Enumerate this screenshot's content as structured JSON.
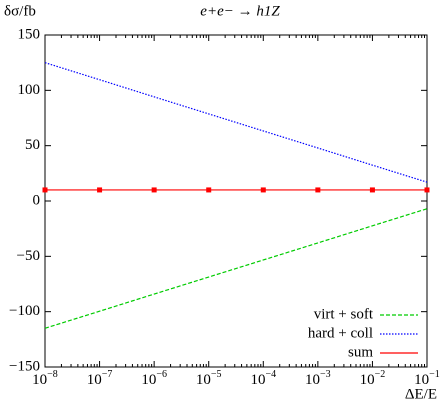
{
  "chart_data": {
    "type": "line",
    "title": "e+e− → h1Z",
    "ylabel": "δσ/fb",
    "xlabel": "ΔE/E",
    "x": [
      1e-08,
      1e-07,
      1e-06,
      1e-05,
      0.0001,
      0.001,
      0.01,
      0.1
    ],
    "series": [
      {
        "name": "virt + soft",
        "color": "#00cc00",
        "dash": "dashed",
        "values": [
          -115,
          -99.6,
          -84.1,
          -68.7,
          -53.3,
          -37.9,
          -22.4,
          -7
        ]
      },
      {
        "name": "hard + coll",
        "color": "#0000ff",
        "dash": "dotted",
        "values": [
          125,
          109.6,
          94.1,
          78.7,
          63.3,
          47.9,
          32.4,
          17
        ]
      },
      {
        "name": "sum",
        "color": "#ff0000",
        "dash": "solid",
        "marker": true,
        "values": [
          10,
          10,
          10,
          10,
          10,
          10,
          10,
          10
        ]
      }
    ],
    "xlog": true,
    "xlim": [
      1e-08,
      0.1
    ],
    "xticks": [
      {
        "value": 1e-08,
        "label": "10−8"
      },
      {
        "value": 1e-07,
        "label": "10−7"
      },
      {
        "value": 1e-06,
        "label": "10−6"
      },
      {
        "value": 1e-05,
        "label": "10−5"
      },
      {
        "value": 0.0001,
        "label": "10−4"
      },
      {
        "value": 0.001,
        "label": "10−3"
      },
      {
        "value": 0.01,
        "label": "10−2"
      },
      {
        "value": 0.1,
        "label": "10−1"
      }
    ],
    "ylim": [
      -150,
      150
    ],
    "yticks": [
      {
        "value": -150,
        "label": "−150"
      },
      {
        "value": -100,
        "label": "−100"
      },
      {
        "value": -50,
        "label": "−50"
      },
      0,
      50,
      100,
      150
    ],
    "legend": "bottom-right"
  }
}
